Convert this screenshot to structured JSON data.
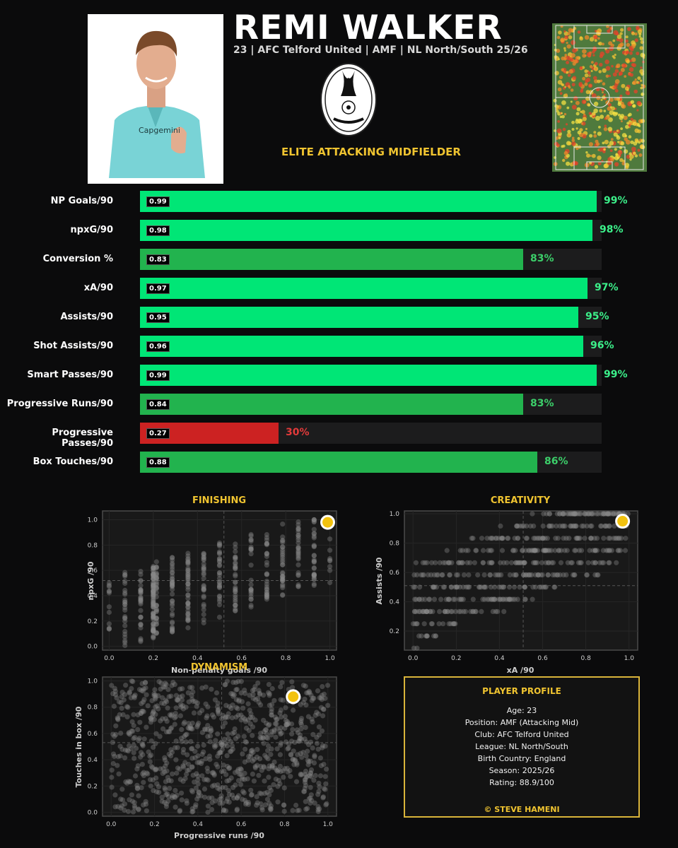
{
  "header": {
    "name": "REMI WALKER",
    "subtitle": "23 | AFC Telford United | AMF | NL North/South 25/26",
    "role": "ELITE ATTACKING MIDFIELDER",
    "badge_text": "AFC Telford United"
  },
  "colors": {
    "elite": "#00e676",
    "good": "#22b34e",
    "poor": "#cc2222",
    "accent": "#f0c430",
    "track": "#1c1c1d"
  },
  "bars": [
    {
      "label": "NP Goals/90",
      "value": "0.99",
      "pct": 99,
      "pct_text": "99%",
      "tier": "elite"
    },
    {
      "label": "npxG/90",
      "value": "0.98",
      "pct": 98,
      "pct_text": "98%",
      "tier": "elite"
    },
    {
      "label": "Conversion %",
      "value": "0.83",
      "pct": 83,
      "pct_text": "83%",
      "tier": "good"
    },
    {
      "label": "xA/90",
      "value": "0.97",
      "pct": 97,
      "pct_text": "97%",
      "tier": "elite"
    },
    {
      "label": "Assists/90",
      "value": "0.95",
      "pct": 95,
      "pct_text": "95%",
      "tier": "elite"
    },
    {
      "label": "Shot Assists/90",
      "value": "0.96",
      "pct": 96,
      "pct_text": "96%",
      "tier": "elite"
    },
    {
      "label": "Smart Passes/90",
      "value": "0.99",
      "pct": 99,
      "pct_text": "99%",
      "tier": "elite"
    },
    {
      "label": "Progressive Runs/90",
      "value": "0.84",
      "pct": 83,
      "pct_text": "83%",
      "tier": "good"
    },
    {
      "label": "Progressive Passes/90",
      "value": "0.27",
      "pct": 30,
      "pct_text": "30%",
      "tier": "poor"
    },
    {
      "label": "Box Touches/90",
      "value": "0.88",
      "pct": 86,
      "pct_text": "86%",
      "tier": "good"
    }
  ],
  "chart_data": [
    {
      "type": "bar",
      "orientation": "horizontal",
      "categories": [
        "NP Goals/90",
        "npxG/90",
        "Conversion %",
        "xA/90",
        "Assists/90",
        "Shot Assists/90",
        "Smart Passes/90",
        "Progressive Runs/90",
        "Progressive Passes/90",
        "Box Touches/90"
      ],
      "values": [
        99,
        98,
        83,
        97,
        95,
        96,
        99,
        83,
        30,
        86
      ],
      "data_labels": [
        0.99,
        0.98,
        0.83,
        0.97,
        0.95,
        0.96,
        0.99,
        0.84,
        0.27,
        0.88
      ],
      "xlim": [
        0,
        100
      ]
    },
    {
      "type": "scatter",
      "title": "FINISHING",
      "xlabel": "Non-penalty goals /90",
      "ylabel": "npxG /90",
      "xlim": [
        -0.03,
        1.03
      ],
      "ylim": [
        -0.03,
        1.07
      ],
      "xticks": [
        "0.0",
        "0.2",
        "0.4",
        "0.6",
        "0.8",
        "1.0"
      ],
      "yticks": [
        "0.0",
        "0.2",
        "0.4",
        "0.6",
        "0.8",
        "1.0"
      ],
      "x_median": 0.52,
      "y_median": 0.52,
      "highlight": {
        "x": 0.99,
        "y": 0.98
      },
      "grid": true
    },
    {
      "type": "scatter",
      "title": "CREATIVITY",
      "xlabel": "xA /90",
      "ylabel": "Assists /90",
      "xlim": [
        -0.04,
        1.04
      ],
      "ylim": [
        0.07,
        1.02
      ],
      "xticks": [
        "0.0",
        "0.2",
        "0.4",
        "0.6",
        "0.8",
        "1.0"
      ],
      "yticks": [
        "0.2",
        "0.4",
        "0.6",
        "0.8",
        "1.0"
      ],
      "x_median": 0.51,
      "y_median": 0.51,
      "highlight": {
        "x": 0.97,
        "y": 0.95
      },
      "grid": true
    },
    {
      "type": "scatter",
      "title": "DYNAMISM",
      "xlabel": "Progressive runs /90",
      "ylabel": "Touches in box /90",
      "xlim": [
        -0.04,
        1.04
      ],
      "ylim": [
        -0.03,
        1.03
      ],
      "xticks": [
        "0.0",
        "0.2",
        "0.4",
        "0.6",
        "0.8",
        "1.0"
      ],
      "yticks": [
        "0.0",
        "0.2",
        "0.4",
        "0.6",
        "0.8",
        "1.0"
      ],
      "x_median": 0.51,
      "y_median": 0.53,
      "highlight": {
        "x": 0.84,
        "y": 0.88
      },
      "grid": true
    }
  ],
  "profile": {
    "title": "PLAYER PROFILE",
    "lines": [
      "Age: 23",
      "Position: AMF (Attacking Mid)",
      "Club: AFC Telford United",
      "League: NL North/South",
      "Birth Country: England",
      "Season: 2025/26",
      "Rating: 88.9/100"
    ],
    "credit": "© STEVE HAMENI"
  }
}
